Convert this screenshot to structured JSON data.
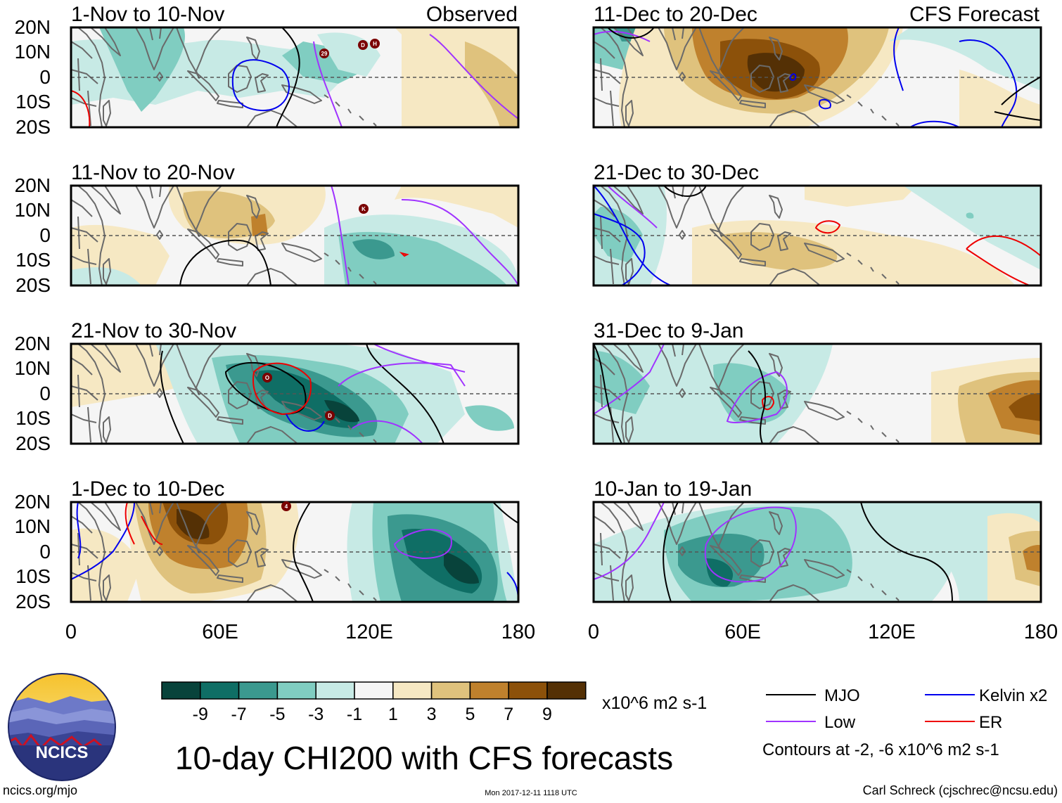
{
  "title": "10-day CHI200 with CFS forecasts",
  "corner_labels": {
    "observed": "Observed",
    "forecast": "CFS Forecast"
  },
  "panels_left": [
    {
      "label": "1-Nov to 10-Nov"
    },
    {
      "label": "11-Nov to 20-Nov"
    },
    {
      "label": "21-Nov to 30-Nov"
    },
    {
      "label": "1-Dec to 10-Dec"
    }
  ],
  "panels_right": [
    {
      "label": "11-Dec to 20-Dec"
    },
    {
      "label": "21-Dec to 30-Dec"
    },
    {
      "label": "31-Dec to 9-Jan"
    },
    {
      "label": "10-Jan to 19-Jan"
    }
  ],
  "y_ticks": [
    "20N",
    "10N",
    "0",
    "10S",
    "20S"
  ],
  "x_ticks": [
    "0",
    "60E",
    "120E",
    "180"
  ],
  "colorbar": {
    "units": "x10^6 m2 s-1",
    "ticks": [
      "-9",
      "-7",
      "-5",
      "-3",
      "-1",
      "1",
      "3",
      "5",
      "7",
      "9"
    ],
    "colors": [
      "#08433b",
      "#0f6e65",
      "#3b998f",
      "#80cdc1",
      "#c7eae5",
      "#f5f5f5",
      "#f6e8c3",
      "#dfc27d",
      "#bf812d",
      "#8c510a",
      "#543005"
    ]
  },
  "legend": {
    "items": [
      {
        "label": "MJO",
        "color": "#000000"
      },
      {
        "label": "Kelvin x2",
        "color": "#0000ee"
      },
      {
        "label": "Low",
        "color": "#a033ff"
      },
      {
        "label": "ER",
        "color": "#ee0000"
      }
    ],
    "note": "Contours at -2, -6 x10^6 m2 s-1"
  },
  "logo": {
    "text": "NCICS"
  },
  "footer": {
    "url": "ncics.org/mjo",
    "timestamp": "Mon 2017-12-11 1118 UTC",
    "credit": "Carl Schreck (cjschrec@ncsu.edu)"
  },
  "storm_markers": [
    "29",
    "D",
    "H",
    "K",
    "O",
    "D",
    "4"
  ]
}
